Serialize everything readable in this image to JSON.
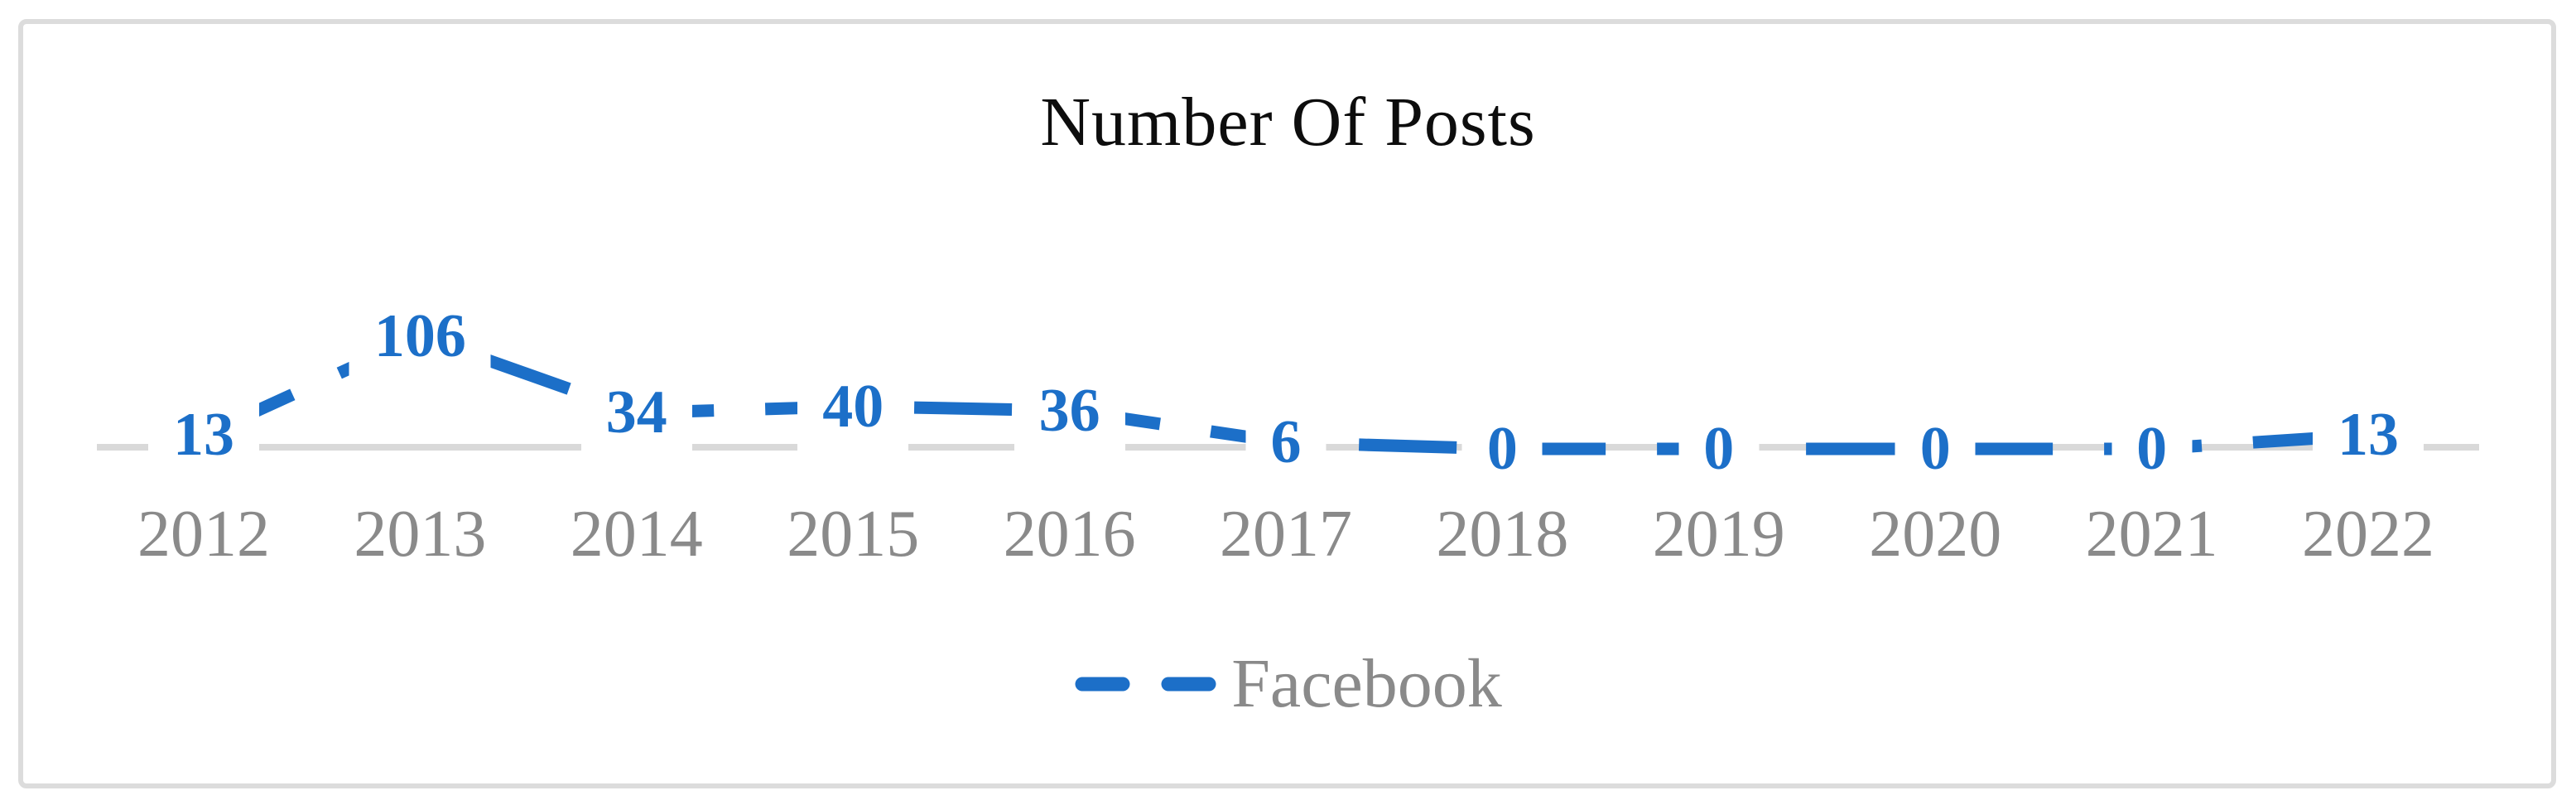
{
  "title": "Number Of Posts",
  "legend": {
    "label": "Facebook",
    "position": "bottom"
  },
  "x_axis": {
    "tick_labels": [
      "2012",
      "2013",
      "2014",
      "2015",
      "2016",
      "2017",
      "2018",
      "2019",
      "2020",
      "2021",
      "2022"
    ]
  },
  "chart_data": {
    "type": "line",
    "title": "Number Of Posts",
    "categories": [
      "2012",
      "2013",
      "2014",
      "2015",
      "2016",
      "2017",
      "2018",
      "2019",
      "2020",
      "2021",
      "2022"
    ],
    "series": [
      {
        "name": "Facebook",
        "values": [
          13,
          106,
          34,
          40,
          36,
          6,
          0,
          0,
          0,
          0,
          13
        ],
        "color": "#1c6fc8",
        "line_style": "dashed",
        "markers": "none"
      }
    ],
    "data_labels": [
      13,
      106,
      34,
      40,
      36,
      6,
      0,
      0,
      0,
      0,
      13
    ],
    "xlabel": "",
    "ylabel": "",
    "ylim": [
      0,
      290
    ],
    "grid": false,
    "y_axis_visible": false,
    "legend_position": "bottom"
  },
  "colors": {
    "line_blue": "#1c6fc8",
    "data_label_blue": "#1c6fc8",
    "axis_gray": "#d9d9d9",
    "text_gray": "#8a8a8a",
    "frame_border_gray": "#dcdcdc",
    "title_black": "#0d0d0d"
  }
}
